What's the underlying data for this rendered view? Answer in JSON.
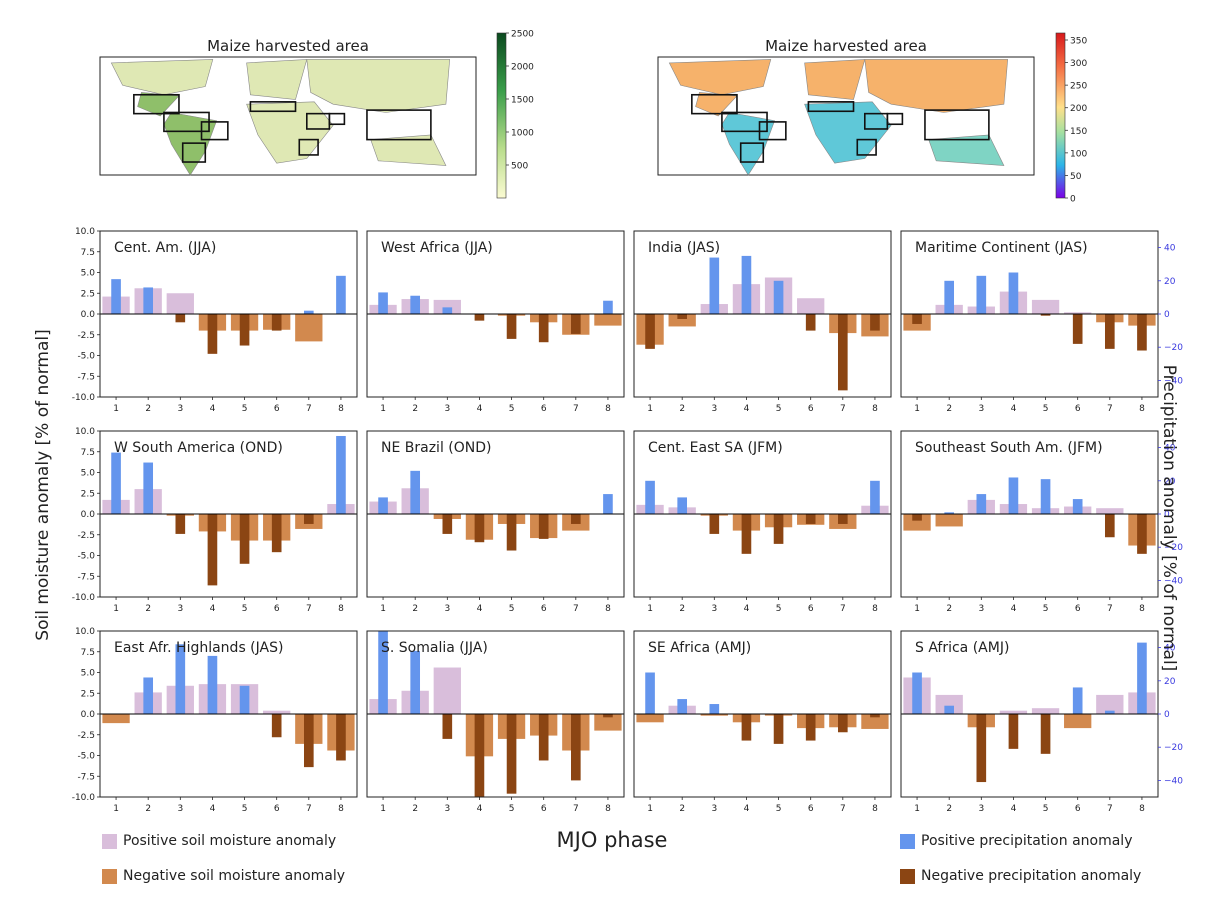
{
  "figure": {
    "y_left_label": "Soil moisture anomaly [% of normal]",
    "y_right_label": "Precipitation anomaly [% of normal]",
    "x_label": "MJO phase"
  },
  "colors": {
    "sm_pos": "#d9bedb",
    "sm_neg": "#d2894e",
    "pr_pos": "#6495ed",
    "pr_neg": "#8b4513",
    "right_axis": "#3a3adf"
  },
  "maps": [
    {
      "title": "Maize harvested area",
      "colorbar_ticks": [
        "2500",
        "2000",
        "1500",
        "1000",
        "500"
      ],
      "colormap": "green"
    },
    {
      "title": "Maize harvested area",
      "colorbar_ticks": [
        "350",
        "300",
        "250",
        "200",
        "150",
        "100",
        "50",
        "0"
      ],
      "colormap": "rainbow"
    }
  ],
  "legend": {
    "sm_pos": "Positive soil moisture anomaly",
    "sm_neg": "Negative soil moisture anomaly",
    "pr_pos": "Positive precipitation anomaly",
    "pr_neg": "Negative precipitation anomaly"
  },
  "axes": {
    "left_ticks": [
      "10.0",
      "7.5",
      "5.0",
      "2.5",
      "0.0",
      "-2.5",
      "-5.0",
      "-7.5",
      "-10.0"
    ],
    "left_range": [
      -10,
      10
    ],
    "right_ticks": [
      "40",
      "20",
      "0",
      "−20",
      "−40"
    ],
    "right_range": [
      -50,
      50
    ],
    "x_ticks": [
      "1",
      "2",
      "3",
      "4",
      "5",
      "6",
      "7",
      "8"
    ]
  },
  "chart_data": [
    {
      "type": "bar",
      "title": "Cent. Am. (JJA)",
      "categories": [
        1,
        2,
        3,
        4,
        5,
        6,
        7,
        8
      ],
      "series": [
        {
          "name": "soil moisture",
          "values": [
            2.1,
            3.1,
            2.5,
            -2.0,
            -2.0,
            -1.9,
            -3.3,
            0.0
          ]
        },
        {
          "name": "precipitation",
          "values": [
            21,
            16,
            -5,
            -24,
            -19,
            -10,
            2,
            23
          ]
        }
      ]
    },
    {
      "type": "bar",
      "title": "West Africa (JJA)",
      "categories": [
        1,
        2,
        3,
        4,
        5,
        6,
        7,
        8
      ],
      "series": [
        {
          "name": "soil moisture",
          "values": [
            1.1,
            1.8,
            1.7,
            0.0,
            -0.2,
            -1.0,
            -2.5,
            -1.4
          ]
        },
        {
          "name": "precipitation",
          "values": [
            13,
            11,
            4,
            -4,
            -15,
            -17,
            -12,
            8
          ]
        }
      ]
    },
    {
      "type": "bar",
      "title": "India (JAS)",
      "categories": [
        1,
        2,
        3,
        4,
        5,
        6,
        7,
        8
      ],
      "series": [
        {
          "name": "soil moisture",
          "values": [
            -3.7,
            -1.5,
            1.2,
            3.6,
            4.4,
            1.9,
            -2.3,
            -2.7
          ]
        },
        {
          "name": "precipitation",
          "values": [
            -21,
            -3,
            34,
            35,
            20,
            -10,
            -46,
            -10
          ]
        }
      ]
    },
    {
      "type": "bar",
      "title": "Maritime Continent (JAS)",
      "categories": [
        1,
        2,
        3,
        4,
        5,
        6,
        7,
        8
      ],
      "series": [
        {
          "name": "soil moisture",
          "values": [
            -2.0,
            1.1,
            0.9,
            2.7,
            1.7,
            0.2,
            -1.0,
            -1.4
          ]
        },
        {
          "name": "precipitation",
          "values": [
            -6,
            20,
            23,
            25,
            -1,
            -18,
            -21,
            -22
          ]
        }
      ]
    },
    {
      "type": "bar",
      "title": "W South America (OND)",
      "categories": [
        1,
        2,
        3,
        4,
        5,
        6,
        7,
        8
      ],
      "series": [
        {
          "name": "soil moisture",
          "values": [
            1.7,
            3.0,
            -0.2,
            -2.1,
            -3.2,
            -3.2,
            -1.8,
            1.2
          ]
        },
        {
          "name": "precipitation",
          "values": [
            37,
            31,
            -12,
            -43,
            -30,
            -23,
            -6,
            47
          ]
        }
      ]
    },
    {
      "type": "bar",
      "title": "NE Brazil (OND)",
      "categories": [
        1,
        2,
        3,
        4,
        5,
        6,
        7,
        8
      ],
      "series": [
        {
          "name": "soil moisture",
          "values": [
            1.5,
            3.1,
            -0.6,
            -3.1,
            -1.2,
            -2.9,
            -2.0,
            0.0
          ]
        },
        {
          "name": "precipitation",
          "values": [
            10,
            26,
            -12,
            -17,
            -22,
            -15,
            -6,
            12
          ]
        }
      ]
    },
    {
      "type": "bar",
      "title": "Cent. East SA (JFM)",
      "categories": [
        1,
        2,
        3,
        4,
        5,
        6,
        7,
        8
      ],
      "series": [
        {
          "name": "soil moisture",
          "values": [
            1.1,
            0.8,
            -0.2,
            -2.0,
            -1.6,
            -1.3,
            -1.8,
            1.0
          ]
        },
        {
          "name": "precipitation",
          "values": [
            20,
            10,
            -12,
            -24,
            -18,
            -6,
            -6,
            20
          ]
        }
      ]
    },
    {
      "type": "bar",
      "title": "Southeast South Am. (JFM)",
      "categories": [
        1,
        2,
        3,
        4,
        5,
        6,
        7,
        8
      ],
      "series": [
        {
          "name": "soil moisture",
          "values": [
            -2.0,
            -1.5,
            1.7,
            1.2,
            0.7,
            0.9,
            0.7,
            -3.8
          ]
        },
        {
          "name": "precipitation",
          "values": [
            -4,
            1,
            12,
            22,
            21,
            9,
            -14,
            -24
          ]
        }
      ]
    },
    {
      "type": "bar",
      "title": "East Afr. Highlands (JAS)",
      "categories": [
        1,
        2,
        3,
        4,
        5,
        6,
        7,
        8
      ],
      "series": [
        {
          "name": "soil moisture",
          "values": [
            -1.1,
            2.6,
            3.4,
            3.6,
            3.6,
            0.4,
            -3.6,
            -4.4
          ]
        },
        {
          "name": "precipitation",
          "values": [
            0,
            22,
            42,
            35,
            17,
            -14,
            -32,
            -28
          ]
        }
      ]
    },
    {
      "type": "bar",
      "title": "S. Somalia (JJA)",
      "categories": [
        1,
        2,
        3,
        4,
        5,
        6,
        7,
        8
      ],
      "series": [
        {
          "name": "soil moisture",
          "values": [
            1.8,
            2.8,
            5.6,
            -5.1,
            -3.0,
            -2.6,
            -4.4,
            -2.0
          ]
        },
        {
          "name": "precipitation",
          "values": [
            52,
            38,
            -15,
            -52,
            -48,
            -28,
            -40,
            -2
          ]
        }
      ]
    },
    {
      "type": "bar",
      "title": "SE Africa (AMJ)",
      "categories": [
        1,
        2,
        3,
        4,
        5,
        6,
        7,
        8
      ],
      "series": [
        {
          "name": "soil moisture",
          "values": [
            -1.0,
            1.0,
            -0.2,
            -1.0,
            -0.2,
            -1.7,
            -1.6,
            -1.8
          ]
        },
        {
          "name": "precipitation",
          "values": [
            25,
            9,
            6,
            -16,
            -18,
            -16,
            -11,
            -2
          ]
        }
      ]
    },
    {
      "type": "bar",
      "title": "S Africa (AMJ)",
      "categories": [
        1,
        2,
        3,
        4,
        5,
        6,
        7,
        8
      ],
      "series": [
        {
          "name": "soil moisture",
          "values": [
            4.4,
            2.3,
            -1.6,
            0.4,
            0.7,
            -1.7,
            2.3,
            2.6
          ]
        },
        {
          "name": "precipitation",
          "values": [
            25,
            5,
            -41,
            -21,
            -24,
            16,
            2,
            43
          ]
        }
      ]
    }
  ]
}
